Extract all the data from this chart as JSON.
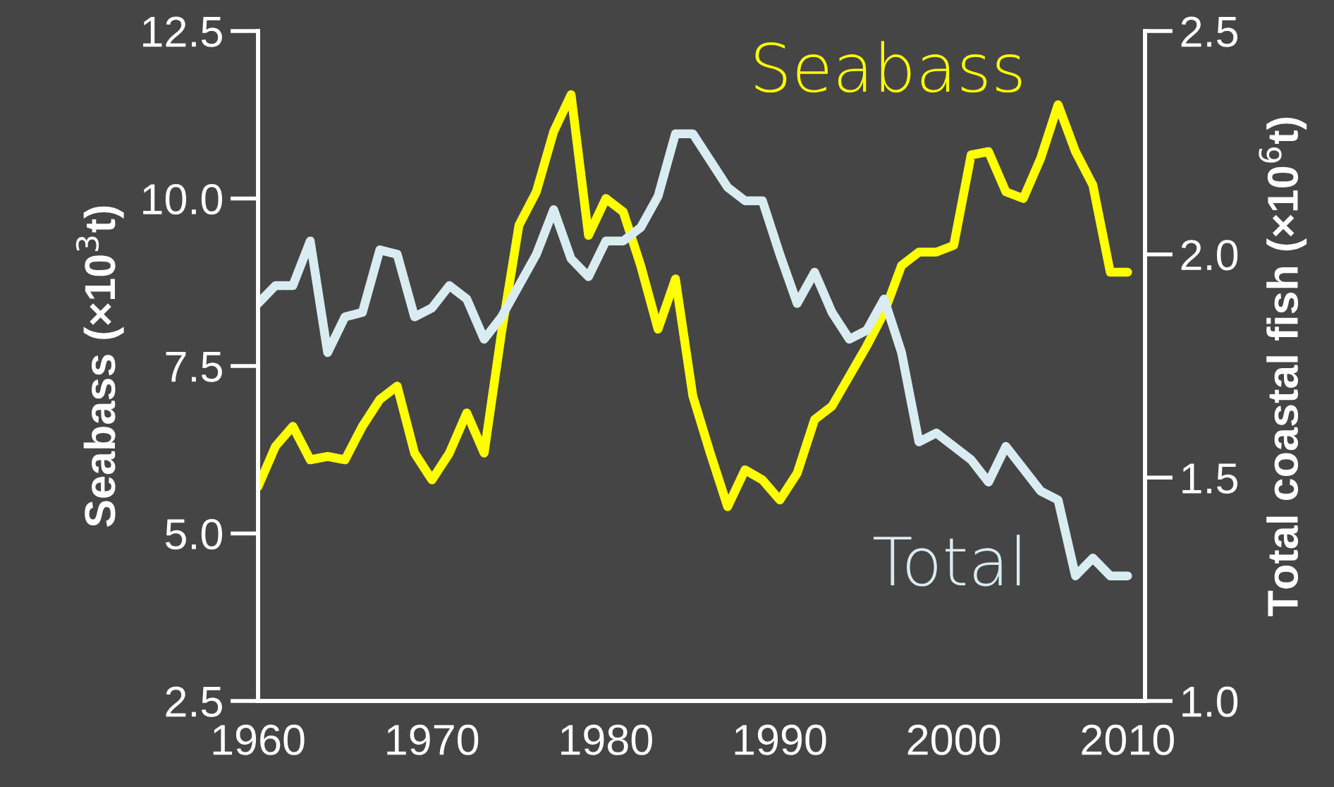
{
  "chart_data": {
    "type": "line",
    "ylabel": "Seabass (×10$^{3}$t)",
    "y2label": "Total coastal fish (×10$^{6}$t)",
    "x": [
      1960,
      1961,
      1962,
      1963,
      1964,
      1965,
      1966,
      1967,
      1968,
      1969,
      1970,
      1971,
      1972,
      1973,
      1974,
      1975,
      1976,
      1977,
      1978,
      1979,
      1980,
      1981,
      1982,
      1983,
      1984,
      1985,
      1986,
      1987,
      1988,
      1989,
      1990,
      1991,
      1992,
      1993,
      1994,
      1995,
      1996,
      1997,
      1998,
      1999,
      2000,
      2001,
      2002,
      2003,
      2004,
      2005,
      2006,
      2007,
      2008,
      2009,
      2010
    ],
    "series": [
      {
        "name": "Seabass",
        "color": "#ffff00",
        "axis": "y",
        "values": [
          5.7,
          6.3,
          6.6,
          6.1,
          6.15,
          6.1,
          6.6,
          7.0,
          7.2,
          6.2,
          5.8,
          6.2,
          6.8,
          6.2,
          8.0,
          9.6,
          10.1,
          11.0,
          11.55,
          9.45,
          10.0,
          9.8,
          9.0,
          8.05,
          8.8,
          7.05,
          6.2,
          5.4,
          5.95,
          5.8,
          5.5,
          5.9,
          6.7,
          6.9,
          7.35,
          7.8,
          8.3,
          9.0,
          9.2,
          9.2,
          9.3,
          10.65,
          10.7,
          10.1,
          10.0,
          10.6,
          11.4,
          10.7,
          10.2,
          8.9,
          8.9
        ]
      },
      {
        "name": "Total",
        "color": "#d9ecf2",
        "axis": "y2",
        "values": [
          1.89,
          1.93,
          1.93,
          2.03,
          1.78,
          1.86,
          1.87,
          2.01,
          2.0,
          1.86,
          1.88,
          1.93,
          1.9,
          1.81,
          1.86,
          1.93,
          2.0,
          2.1,
          1.99,
          1.95,
          2.03,
          2.03,
          2.06,
          2.13,
          2.27,
          2.27,
          2.21,
          2.15,
          2.12,
          2.12,
          2.0,
          1.89,
          1.96,
          1.87,
          1.81,
          1.83,
          1.9,
          1.78,
          1.58,
          1.6,
          1.57,
          1.54,
          1.49,
          1.57,
          1.52,
          1.47,
          1.45,
          1.28,
          1.32,
          1.28,
          1.28
        ]
      }
    ],
    "xlim": [
      1960,
      2011
    ],
    "xticks": [
      1960,
      1970,
      1980,
      1990,
      2000,
      2010
    ],
    "ylim": [
      2.5,
      12.5
    ],
    "yticks": [
      2.5,
      {
        "value": 5,
        "label": "5.0"
      },
      7.5,
      {
        "value": 10,
        "label": "10.0"
      },
      12.5
    ],
    "y2lim": [
      1.0,
      2.5
    ],
    "y2ticks": [
      {
        "value": 1,
        "label": "1.0"
      },
      1.5,
      {
        "value": 2,
        "label": "2.0"
      },
      2.5
    ],
    "grid": false,
    "legend": false,
    "marker": "none",
    "line_style": "solid"
  }
}
